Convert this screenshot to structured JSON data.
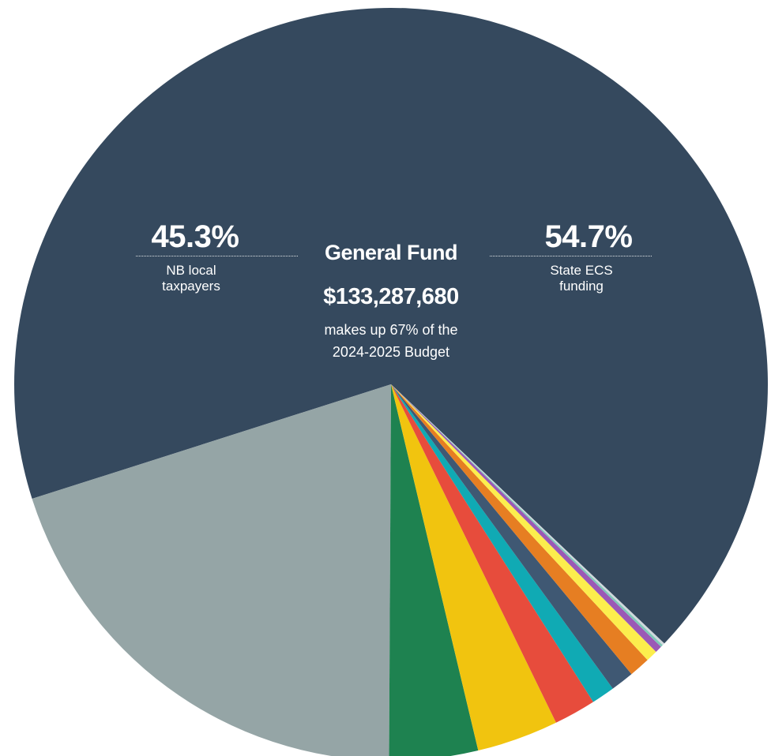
{
  "chart_data": {
    "type": "pie",
    "title": "General Fund",
    "amount": "$133,287,680",
    "note_line1": "makes up 67% of the",
    "note_line2": "2024-2025 Budget",
    "main_slice_split": {
      "left": {
        "value": "45.3%",
        "label_line1": "NB local",
        "label_line2": "taxpayers"
      },
      "right": {
        "value": "54.7%",
        "label_line1": "State ECS",
        "label_line2": "funding"
      }
    },
    "slices": [
      {
        "value": 67.0,
        "color": "#35495e"
      },
      {
        "value": 20.0,
        "color": "#95a5a6"
      },
      {
        "value": 3.8,
        "color": "#1e8250"
      },
      {
        "value": 3.5,
        "color": "#f1c40f"
      },
      {
        "value": 1.8,
        "color": "#e74c3c"
      },
      {
        "value": 1.0,
        "color": "#10aab4"
      },
      {
        "value": 1.0,
        "color": "#3f5873"
      },
      {
        "value": 0.9,
        "color": "#e67e22"
      },
      {
        "value": 0.5,
        "color": "#fcee4d"
      },
      {
        "value": 0.3,
        "color": "#9b59b6"
      },
      {
        "value": 0.1,
        "color": "#7ec8b8"
      },
      {
        "value": 0.1,
        "color": "#cfd8dc"
      }
    ]
  }
}
